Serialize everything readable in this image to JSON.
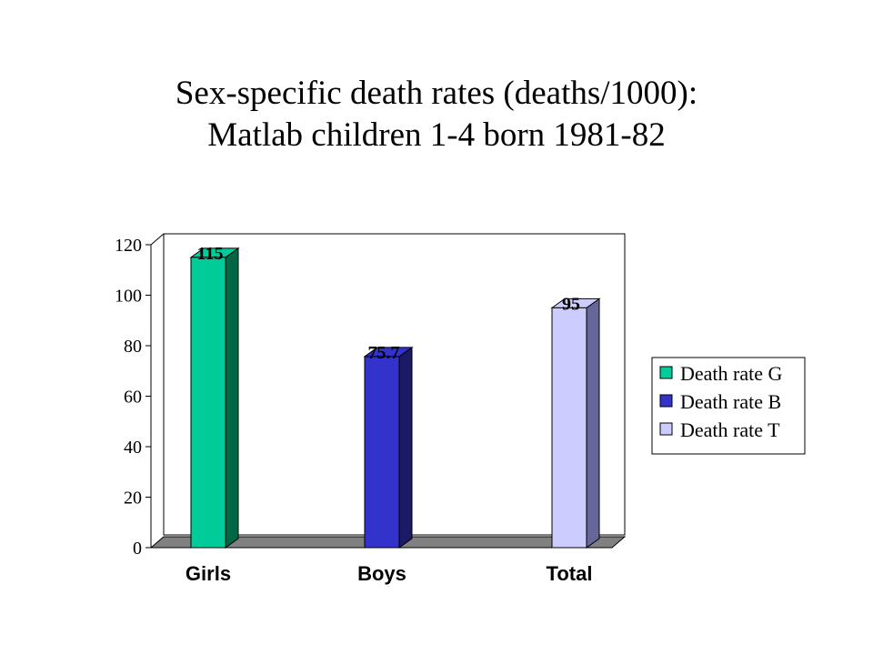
{
  "title": "Sex-specific death rates (deaths/1000):\nMatlab children 1-4 born 1981-82",
  "chart_data": {
    "type": "bar",
    "title": "Sex-specific death rates (deaths/1000):\nMatlab children 1-4 born 1981-82",
    "xlabel": "",
    "ylabel": "",
    "categories": [
      "Girls",
      "Boys",
      "Total"
    ],
    "series": [
      {
        "name": "Death rate G",
        "values": [
          115,
          null,
          null
        ],
        "color": "#00cc99",
        "side_color": "#006644"
      },
      {
        "name": "Death rate B",
        "values": [
          null,
          75.7,
          null
        ],
        "color": "#3333cc",
        "side_color": "#1a1a66"
      },
      {
        "name": "Death rate T",
        "values": [
          null,
          null,
          95
        ],
        "color": "#ccccff",
        "side_color": "#666699"
      }
    ],
    "data_labels": [
      "115",
      "75.7",
      "95"
    ],
    "yticks": [
      0,
      20,
      40,
      60,
      80,
      100,
      120
    ],
    "ylim": [
      0,
      120
    ],
    "grid": false,
    "legend_position": "right",
    "style": "3d-column"
  }
}
